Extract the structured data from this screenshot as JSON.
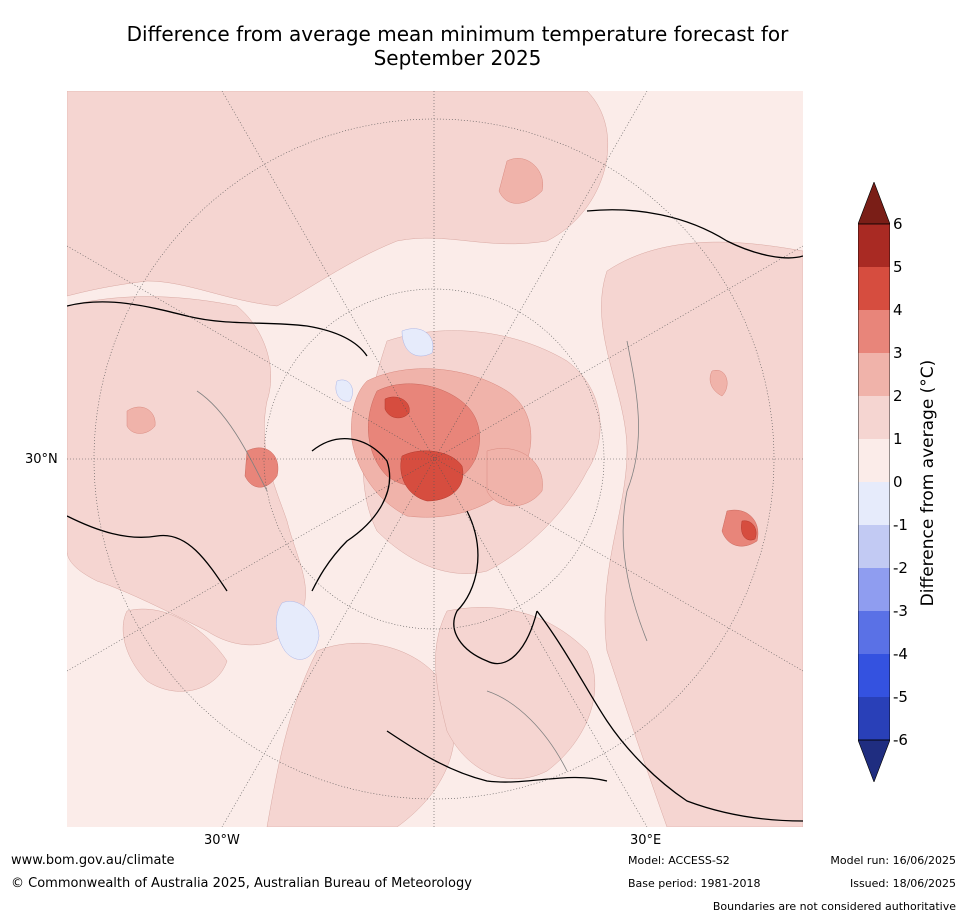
{
  "title_line1": "Difference from average mean minimum temperature forecast for",
  "title_line2": "September 2025",
  "axis_labels": {
    "lat": "30°N",
    "lon_west": "30°W",
    "lon_east": "30°E"
  },
  "colorbar": {
    "title": "Difference from average (°C)",
    "ticks": [
      "6",
      "5",
      "4",
      "3",
      "2",
      "1",
      "0",
      "-1",
      "-2",
      "-3",
      "-4",
      "-5",
      "-6"
    ],
    "colors": {
      "above6": "#7a1e17",
      "c5_6": "#a92a23",
      "c4_5": "#d64d3f",
      "c3_4": "#e8857a",
      "c2_3": "#f0b3aa",
      "c1_2": "#f5d5d1",
      "c0_1": "#fbece9",
      "cm1_0": "#e6ebfb",
      "cm2_m1": "#c2caf3",
      "cm3_m2": "#8f9df0",
      "cm4_m3": "#5a71e6",
      "cm5_m4": "#3452e0",
      "cm6_m5": "#2940b8",
      "below_m6": "#1f2d80"
    }
  },
  "footer": {
    "url": "www.bom.gov.au/climate",
    "copyright": "© Commonwealth of Australia 2025, Australian Bureau of Meteorology",
    "model": "Model: ACCESS-S2",
    "base_period": "Base period: 1981-2018",
    "model_run": "Model run: 16/06/2025",
    "issued": "Issued: 18/06/2025",
    "disclaimer": "Boundaries are not considered authoritative"
  }
}
